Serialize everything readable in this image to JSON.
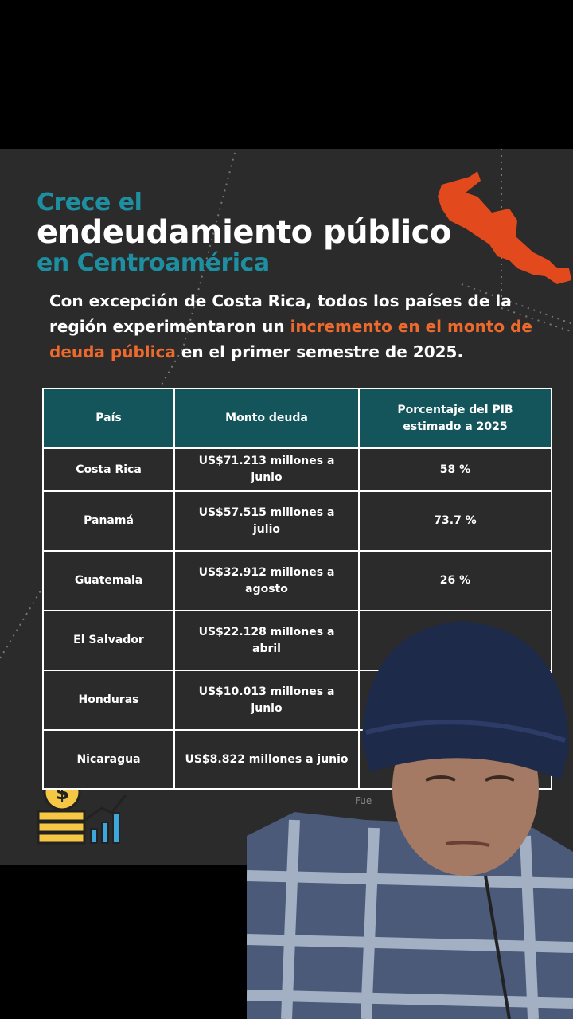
{
  "header": {
    "title_line1": "Crece el",
    "title_line2": "endeudamiento público",
    "title_line3": "en Centroamérica"
  },
  "intro": {
    "before": "Con excepción de Costa Rica, todos los países de la región experimentaron un ",
    "highlight": "incremento en el monto de deuda pública",
    "after": " en el primer semestre de 2025."
  },
  "table": {
    "columns": [
      "País",
      "Monto deuda",
      "Porcentaje del PIB estimado a 2025"
    ],
    "rows": [
      [
        "Costa Rica",
        "US$71.213 millones a junio",
        "58 %"
      ],
      [
        "Panamá",
        "US$57.515 millones a julio",
        "73.7 %"
      ],
      [
        "Guatemala",
        "US$32.912 millones a agosto",
        "26 %"
      ],
      [
        "El Salvador",
        "US$22.128 millones a abril"
      ],
      [
        "Honduras",
        "US$10.013 millones a junio"
      ],
      [
        "Nicaragua",
        "US$8.822 millones a junio"
      ]
    ]
  },
  "footer": {
    "source_fragment": "Fue"
  }
}
